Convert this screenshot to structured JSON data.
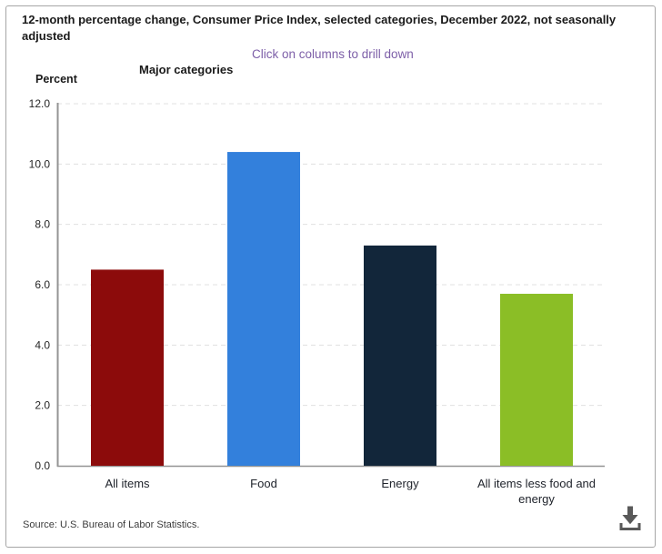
{
  "header": {
    "title": "12-month percentage change, Consumer Price Index, selected categories, December 2022, not seasonally adjusted",
    "drilldown_hint": "Click on columns to drill down",
    "x_axis_title": "Major categories",
    "y_axis_title": "Percent"
  },
  "chart_data": {
    "type": "bar",
    "title": "12-month percentage change, Consumer Price Index, selected categories, December 2022, not seasonally adjusted",
    "xlabel": "Major categories",
    "ylabel": "Percent",
    "categories": [
      "All items",
      "Food",
      "Energy",
      "All items less food and energy"
    ],
    "category_lines": [
      [
        "All items"
      ],
      [
        "Food"
      ],
      [
        "Energy"
      ],
      [
        "All items less food and",
        "energy"
      ]
    ],
    "values": [
      6.5,
      10.4,
      7.3,
      5.7
    ],
    "bar_colors": [
      "#8c0b0b",
      "#3380dc",
      "#12263a",
      "#8bbe26"
    ],
    "ylim": [
      0,
      12
    ],
    "yticks": [
      "12.0",
      "10.0",
      "8.0",
      "6.0",
      "4.0",
      "2.0",
      "0.0"
    ],
    "grid": "horizontal-dashed",
    "legend": "none"
  },
  "style_colors": {
    "hint_purple": "#7d5fa8",
    "gridline": "#e0e0e0",
    "axis": "#939393",
    "tick_text": "#262626",
    "category_text": "#20242c",
    "icon_gray": "#595959"
  },
  "footer": {
    "source": "Source: U.S. Bureau of Labor Statistics.",
    "download_icon": "download-icon"
  }
}
